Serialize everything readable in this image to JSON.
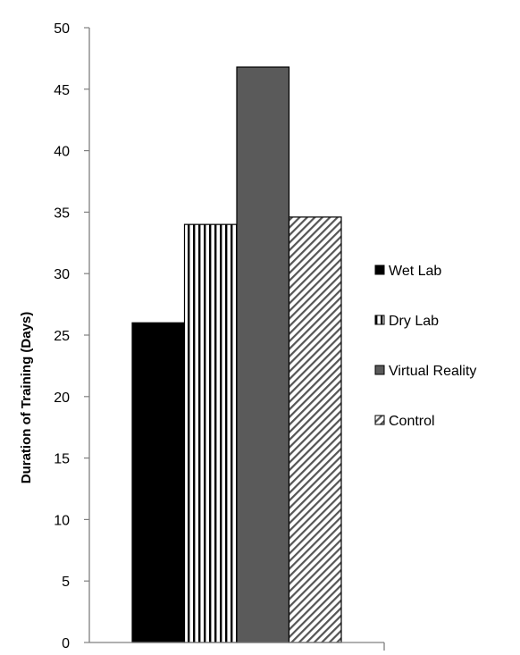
{
  "chart_data": {
    "type": "bar",
    "title": "",
    "xlabel": "",
    "ylabel": "Duration of Training (Days)",
    "ylim": [
      0,
      50
    ],
    "yticks": [
      0,
      5,
      10,
      15,
      20,
      25,
      30,
      35,
      40,
      45,
      50
    ],
    "grid": false,
    "legend_position": "right",
    "series": [
      {
        "name": "Wet Lab",
        "value": 26,
        "color": "#000000",
        "pattern": "solid"
      },
      {
        "name": "Dry Lab",
        "value": 34,
        "color": "#ffffff",
        "pattern": "vertical-stripes"
      },
      {
        "name": "Virtual Reality",
        "value": 46.8,
        "color": "#5a5a5a",
        "pattern": "solid"
      },
      {
        "name": "Control",
        "value": 34.6,
        "color": "#ffffff",
        "pattern": "diagonal-hatch"
      }
    ]
  }
}
